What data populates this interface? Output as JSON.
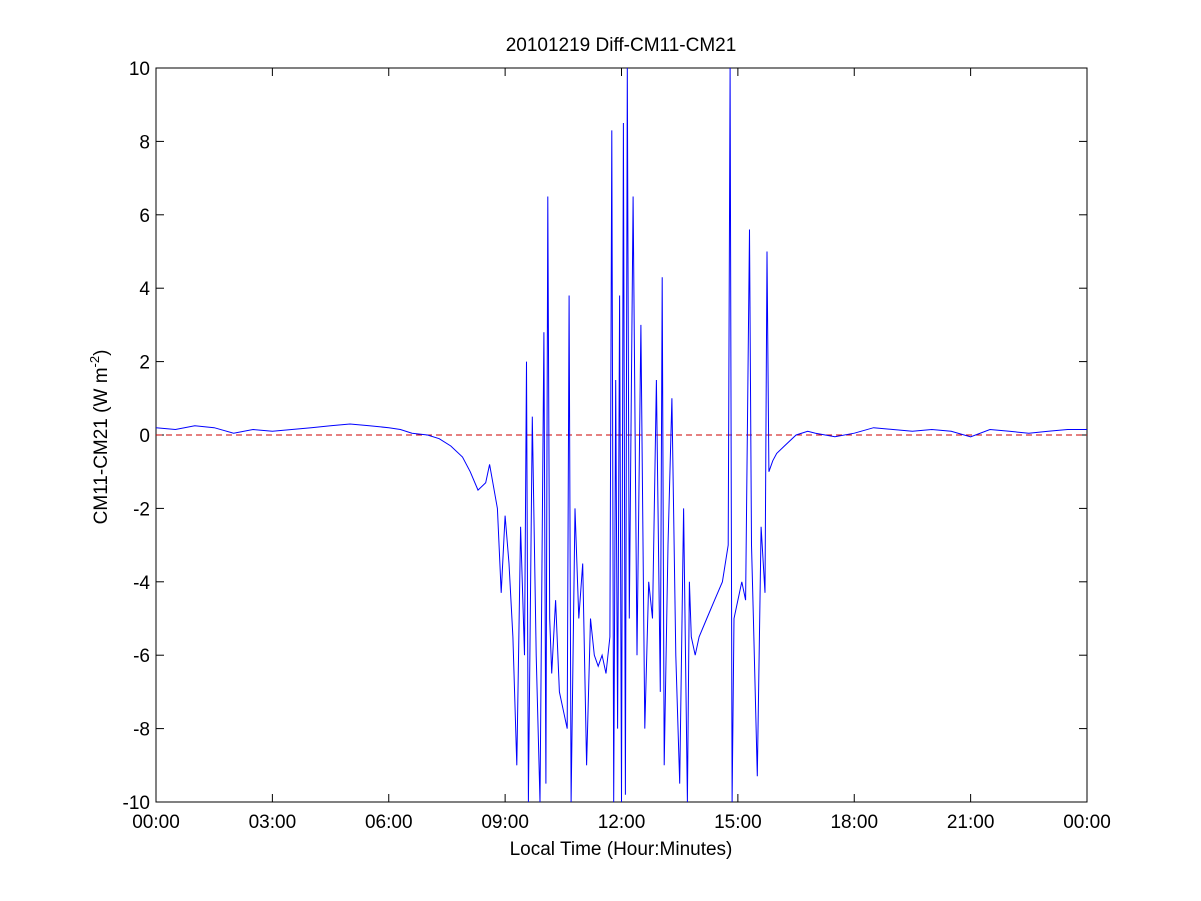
{
  "chart_data": {
    "type": "line",
    "title": "20101219 Diff-CM11-CM21",
    "xlabel": "Local Time (Hour:Minutes)",
    "ylabel": {
      "main": "CM11-CM21 (W m",
      "sup": "-2",
      "close": ")"
    },
    "xlim_hours": [
      0,
      24
    ],
    "ylim": [
      -10,
      10
    ],
    "xticks": [
      {
        "hour": 0,
        "label": "00:00"
      },
      {
        "hour": 3,
        "label": "03:00"
      },
      {
        "hour": 6,
        "label": "06:00"
      },
      {
        "hour": 9,
        "label": "09:00"
      },
      {
        "hour": 12,
        "label": "12:00"
      },
      {
        "hour": 15,
        "label": "15:00"
      },
      {
        "hour": 18,
        "label": "18:00"
      },
      {
        "hour": 21,
        "label": "21:00"
      },
      {
        "hour": 24,
        "label": "00:00"
      }
    ],
    "yticks": [
      {
        "value": -10,
        "label": "-10"
      },
      {
        "value": -8,
        "label": "-8"
      },
      {
        "value": -6,
        "label": "-6"
      },
      {
        "value": -4,
        "label": "-4"
      },
      {
        "value": -2,
        "label": "-2"
      },
      {
        "value": 0,
        "label": "0"
      },
      {
        "value": 2,
        "label": "2"
      },
      {
        "value": 4,
        "label": "4"
      },
      {
        "value": 6,
        "label": "6"
      },
      {
        "value": 8,
        "label": "8"
      },
      {
        "value": 10,
        "label": "10"
      }
    ],
    "grid": false,
    "legend": "none",
    "series": [
      {
        "color": "#0000ff",
        "points": [
          [
            0.0,
            0.2
          ],
          [
            0.5,
            0.15
          ],
          [
            1.0,
            0.25
          ],
          [
            1.5,
            0.2
          ],
          [
            2.0,
            0.05
          ],
          [
            2.5,
            0.15
          ],
          [
            3.0,
            0.1
          ],
          [
            3.5,
            0.15
          ],
          [
            4.0,
            0.2
          ],
          [
            4.5,
            0.25
          ],
          [
            5.0,
            0.3
          ],
          [
            5.5,
            0.25
          ],
          [
            6.0,
            0.2
          ],
          [
            6.3,
            0.15
          ],
          [
            6.6,
            0.05
          ],
          [
            7.0,
            0.0
          ],
          [
            7.3,
            -0.1
          ],
          [
            7.6,
            -0.3
          ],
          [
            7.9,
            -0.6
          ],
          [
            8.1,
            -1.0
          ],
          [
            8.3,
            -1.5
          ],
          [
            8.5,
            -1.3
          ],
          [
            8.6,
            -0.8
          ],
          [
            8.7,
            -1.4
          ],
          [
            8.8,
            -2.0
          ],
          [
            8.9,
            -4.3
          ],
          [
            9.0,
            -2.2
          ],
          [
            9.1,
            -3.5
          ],
          [
            9.2,
            -5.5
          ],
          [
            9.3,
            -9.0
          ],
          [
            9.4,
            -2.5
          ],
          [
            9.5,
            -6.0
          ],
          [
            9.55,
            2.0
          ],
          [
            9.6,
            -10.0
          ],
          [
            9.7,
            0.5
          ],
          [
            9.8,
            -6.0
          ],
          [
            9.9,
            -10.0
          ],
          [
            10.0,
            2.8
          ],
          [
            10.05,
            -9.5
          ],
          [
            10.1,
            6.5
          ],
          [
            10.15,
            -5.0
          ],
          [
            10.2,
            -6.5
          ],
          [
            10.3,
            -4.5
          ],
          [
            10.4,
            -7.0
          ],
          [
            10.5,
            -7.5
          ],
          [
            10.6,
            -8.0
          ],
          [
            10.65,
            3.8
          ],
          [
            10.7,
            -10.0
          ],
          [
            10.8,
            -2.0
          ],
          [
            10.9,
            -5.0
          ],
          [
            11.0,
            -3.5
          ],
          [
            11.1,
            -9.0
          ],
          [
            11.2,
            -5.0
          ],
          [
            11.3,
            -6.0
          ],
          [
            11.4,
            -6.3
          ],
          [
            11.5,
            -6.0
          ],
          [
            11.6,
            -6.5
          ],
          [
            11.7,
            -5.5
          ],
          [
            11.75,
            8.3
          ],
          [
            11.8,
            -10.0
          ],
          [
            11.85,
            1.5
          ],
          [
            11.9,
            -8.0
          ],
          [
            11.95,
            3.8
          ],
          [
            12.0,
            -10.0
          ],
          [
            12.05,
            8.5
          ],
          [
            12.1,
            -9.8
          ],
          [
            12.15,
            10.0
          ],
          [
            12.2,
            -5.0
          ],
          [
            12.3,
            6.5
          ],
          [
            12.4,
            -6.0
          ],
          [
            12.5,
            3.0
          ],
          [
            12.6,
            -8.0
          ],
          [
            12.7,
            -4.0
          ],
          [
            12.8,
            -5.0
          ],
          [
            12.9,
            1.5
          ],
          [
            13.0,
            -7.0
          ],
          [
            13.05,
            4.3
          ],
          [
            13.1,
            -9.0
          ],
          [
            13.2,
            -3.0
          ],
          [
            13.3,
            1.0
          ],
          [
            13.4,
            -6.0
          ],
          [
            13.5,
            -9.5
          ],
          [
            13.6,
            -2.0
          ],
          [
            13.7,
            -10.0
          ],
          [
            13.75,
            -4.0
          ],
          [
            13.8,
            -5.5
          ],
          [
            13.9,
            -6.0
          ],
          [
            14.0,
            -5.5
          ],
          [
            14.2,
            -5.0
          ],
          [
            14.4,
            -4.5
          ],
          [
            14.6,
            -4.0
          ],
          [
            14.75,
            -3.0
          ],
          [
            14.8,
            10.0
          ],
          [
            14.85,
            -10.0
          ],
          [
            14.9,
            -5.0
          ],
          [
            15.0,
            -4.5
          ],
          [
            15.1,
            -4.0
          ],
          [
            15.2,
            -4.5
          ],
          [
            15.3,
            5.6
          ],
          [
            15.35,
            -3.0
          ],
          [
            15.4,
            -5.0
          ],
          [
            15.5,
            -9.3
          ],
          [
            15.6,
            -2.5
          ],
          [
            15.7,
            -4.3
          ],
          [
            15.75,
            5.0
          ],
          [
            15.8,
            -1.0
          ],
          [
            15.9,
            -0.7
          ],
          [
            16.0,
            -0.5
          ],
          [
            16.2,
            -0.3
          ],
          [
            16.5,
            0.0
          ],
          [
            16.8,
            0.1
          ],
          [
            17.0,
            0.05
          ],
          [
            17.5,
            -0.05
          ],
          [
            18.0,
            0.05
          ],
          [
            18.5,
            0.2
          ],
          [
            19.0,
            0.15
          ],
          [
            19.5,
            0.1
          ],
          [
            20.0,
            0.15
          ],
          [
            20.5,
            0.1
          ],
          [
            21.0,
            -0.05
          ],
          [
            21.5,
            0.15
          ],
          [
            22.0,
            0.1
          ],
          [
            22.5,
            0.05
          ],
          [
            23.0,
            0.1
          ],
          [
            23.5,
            0.15
          ],
          [
            24.0,
            0.15
          ]
        ]
      }
    ],
    "reference_line": {
      "y": 0,
      "color": "#cc0000",
      "style": "dashed"
    }
  }
}
